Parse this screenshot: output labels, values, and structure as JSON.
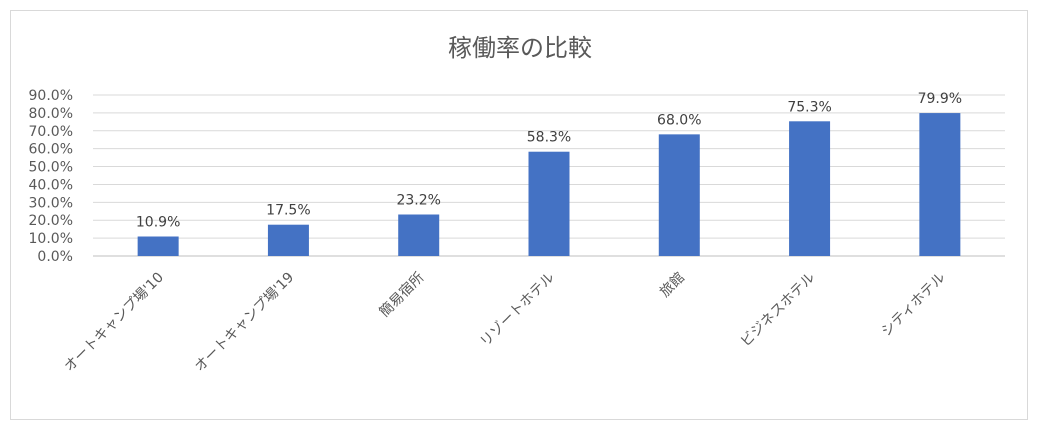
{
  "chart_data": {
    "type": "bar",
    "title": "稼働率の比較",
    "xlabel": "",
    "ylabel": "",
    "categories": [
      "オートキャンプ場'10",
      "オートキャンプ場'19",
      "簡易宿所",
      "リゾートホテル",
      "旅館",
      "ビジネスホテル",
      "シティホテル"
    ],
    "values": [
      10.9,
      17.5,
      23.2,
      58.3,
      68.0,
      75.3,
      79.9
    ],
    "value_labels": [
      "10.9%",
      "17.5%",
      "23.2%",
      "58.3%",
      "68.0%",
      "75.3%",
      "79.9%"
    ],
    "y_ticks": [
      0,
      10,
      20,
      30,
      40,
      50,
      60,
      70,
      80,
      90
    ],
    "y_tick_labels": [
      "0.0%",
      "10.0%",
      "20.0%",
      "30.0%",
      "40.0%",
      "50.0%",
      "60.0%",
      "70.0%",
      "80.0%",
      "90.0%"
    ],
    "ylim": [
      0,
      90
    ],
    "grid": true,
    "legend": "none",
    "bar_color": "#4472c4"
  }
}
